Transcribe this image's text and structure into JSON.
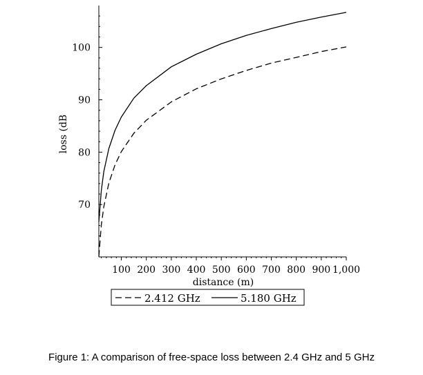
{
  "chart_data": {
    "type": "line",
    "title": "",
    "xlabel": "distance (m)",
    "ylabel": "loss (dB",
    "xlim": [
      10,
      1000
    ],
    "ylim": [
      60,
      108
    ],
    "x_ticks": [
      100,
      200,
      300,
      400,
      500,
      600,
      700,
      800,
      900,
      1000
    ],
    "x_tick_labels": [
      "100",
      "200",
      "300",
      "400",
      "500",
      "600",
      "700",
      "800",
      "900",
      "1,000"
    ],
    "y_ticks": [
      70,
      80,
      90,
      100
    ],
    "y_tick_labels": [
      "70",
      "80",
      "90",
      "100"
    ],
    "grid": false,
    "legend": "bottom",
    "series": [
      {
        "name": "2.412 GHz",
        "style": "dashed",
        "color": "#000000",
        "x": [
          10,
          20,
          30,
          50,
          75,
          100,
          150,
          200,
          300,
          400,
          500,
          600,
          700,
          800,
          900,
          1000
        ],
        "y": [
          60.1,
          66.1,
          69.6,
          74.1,
          77.6,
          80.1,
          83.6,
          86.1,
          89.6,
          92.1,
          94.0,
          95.6,
          97.0,
          98.1,
          99.2,
          100.1
        ]
      },
      {
        "name": "5.180 GHz",
        "style": "solid",
        "color": "#000000",
        "x": [
          10,
          20,
          30,
          50,
          75,
          100,
          150,
          200,
          300,
          400,
          500,
          600,
          700,
          800,
          900,
          1000
        ],
        "y": [
          66.7,
          72.7,
          76.3,
          80.7,
          84.2,
          86.7,
          90.3,
          92.7,
          96.3,
          98.7,
          100.7,
          102.3,
          103.6,
          104.8,
          105.8,
          106.7
        ]
      }
    ]
  },
  "caption": "Figure 1: A comparison of free-space loss between 2.4 GHz and 5 GHz"
}
